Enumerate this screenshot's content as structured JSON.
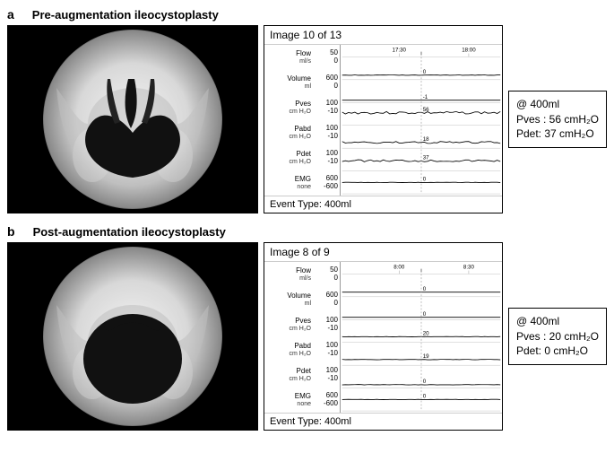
{
  "panels": [
    {
      "letter": "a",
      "title": "Pre-augmentation ileocystoplasty",
      "image_caption": "Image 10 of 13",
      "event_type": "Event Type: 400ml",
      "time_ticks": [
        "17:30",
        "18:00"
      ],
      "channels": [
        {
          "name": "Flow",
          "unit": "ml/s",
          "hi": "50",
          "lo": "0",
          "value": "0",
          "trace_offset": 0.8,
          "noise": 0.5
        },
        {
          "name": "Volume",
          "unit": "ml",
          "hi": "600",
          "lo": "0",
          "value": "-1",
          "trace_offset": 0.9,
          "noise": 0
        },
        {
          "name": "Pves",
          "unit": "cm H₂O",
          "hi": "100",
          "lo": "-10",
          "value": "56",
          "trace_offset": 0.45,
          "noise": 3
        },
        {
          "name": "Pabd",
          "unit": "cm H₂O",
          "hi": "100",
          "lo": "-10",
          "value": "18",
          "trace_offset": 0.75,
          "noise": 2.5
        },
        {
          "name": "Pdet",
          "unit": "cm H₂O",
          "hi": "100",
          "lo": "-10",
          "value": "37",
          "trace_offset": 0.55,
          "noise": 2.5
        },
        {
          "name": "EMG",
          "unit": "none",
          "hi": "600",
          "lo": "-600",
          "value": "0",
          "trace_offset": 0.5,
          "noise": 0.5
        }
      ],
      "summary": {
        "at": "@ 400ml",
        "pves": "Pves : 56 cmH₂O",
        "pdet": "Pdet:  37 cmH₂O"
      },
      "xray_variant": "pre"
    },
    {
      "letter": "b",
      "title": "Post-augmentation ileocystoplasty",
      "image_caption": "Image 8 of 9",
      "event_type": "Event Type: 400ml",
      "time_ticks": [
        "8:00",
        "8:30"
      ],
      "channels": [
        {
          "name": "Flow",
          "unit": "ml/s",
          "hi": "50",
          "lo": "0",
          "value": "0",
          "trace_offset": 0.8,
          "noise": 0
        },
        {
          "name": "Volume",
          "unit": "ml",
          "hi": "600",
          "lo": "0",
          "value": "0",
          "trace_offset": 0.9,
          "noise": 0
        },
        {
          "name": "Pves",
          "unit": "cm H₂O",
          "hi": "100",
          "lo": "-10",
          "value": "20",
          "trace_offset": 0.75,
          "noise": 0.5
        },
        {
          "name": "Pabd",
          "unit": "cm H₂O",
          "hi": "100",
          "lo": "-10",
          "value": "19",
          "trace_offset": 0.75,
          "noise": 0.5
        },
        {
          "name": "Pdet",
          "unit": "cm H₂O",
          "hi": "100",
          "lo": "-10",
          "value": "0",
          "trace_offset": 0.85,
          "noise": 0.5
        },
        {
          "name": "EMG",
          "unit": "none",
          "hi": "600",
          "lo": "-600",
          "value": "0",
          "trace_offset": 0.5,
          "noise": 0.3
        }
      ],
      "summary": {
        "at": "@ 400ml",
        "pves": "Pves : 20 cmH₂O",
        "pdet": "Pdet:   0 cmH₂O"
      },
      "xray_variant": "post"
    }
  ],
  "style": {
    "trace_color": "#000000",
    "grid_color": "#bbbbbb",
    "marker_color": "#999999",
    "value_font": "9px"
  }
}
